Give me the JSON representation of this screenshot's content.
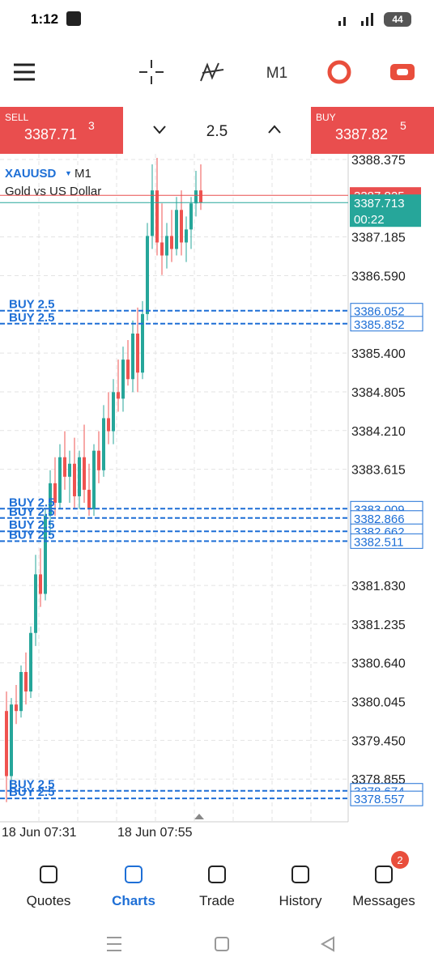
{
  "status": {
    "time": "1:12",
    "battery": "44"
  },
  "toolbar": {
    "timeframe": "M1"
  },
  "trade": {
    "sell_label": "SELL",
    "sell_price": "3387.71",
    "sell_sup": "3",
    "lot": "2.5",
    "buy_label": "BUY",
    "buy_price": "3387.82",
    "buy_sup": "5"
  },
  "chart_data": {
    "type": "candlestick",
    "symbol": "XAUUSD",
    "timeframe": "M1",
    "description": "Gold vs US Dollar",
    "up_color": "#26a69a",
    "down_color": "#ef5350",
    "grid": true,
    "ylim": [
      3378.198,
      3388.462
    ],
    "yticks": [
      3388.375,
      3387.185,
      {
        "value": 3386.59,
        "label": "3386.590"
      },
      {
        "value": 3385.4,
        "label": "3385.400"
      },
      3384.805,
      {
        "value": 3384.21,
        "label": "3384.210"
      },
      3383.615,
      {
        "value": 3381.83,
        "label": "3381.830"
      },
      3381.235,
      {
        "value": 3380.64,
        "label": "3380.640"
      },
      3380.045,
      {
        "value": 3379.45,
        "label": "3379.450"
      },
      3378.855
    ],
    "x_labels": [
      "18 Jun 07:31",
      "18 Jun 07:55"
    ],
    "bid": 3387.713,
    "bid_timer": "00:22",
    "ask": 3387.825,
    "orders": [
      {
        "label": "BUY 2.5",
        "price": 3386.052
      },
      {
        "label": "BUY 2.5",
        "price": 3385.852
      },
      {
        "label": "BUY 2.5",
        "price": 3383.009
      },
      {
        "label": "BUY 2.5",
        "price": 3382.866
      },
      {
        "label": "BUY 2.5",
        "price": 3382.662
      },
      {
        "label": "BUY 2.5",
        "price": 3382.511
      },
      {
        "label": "BUY 2.5",
        "price": 3378.674
      },
      {
        "label": "BUY 2.5",
        "price": 3378.557
      }
    ],
    "candles": [
      [
        3379.9,
        3380.2,
        3378.5,
        3378.9
      ],
      [
        3378.9,
        3380.1,
        3378.7,
        3380.0
      ],
      [
        3380.0,
        3380.3,
        3379.7,
        3379.9
      ],
      [
        3379.9,
        3380.6,
        3379.8,
        3380.5
      ],
      [
        3380.5,
        3380.8,
        3380.0,
        3380.2
      ],
      [
        3380.2,
        3381.2,
        3380.1,
        3381.1
      ],
      [
        3381.1,
        3382.3,
        3380.9,
        3382.0
      ],
      [
        3382.0,
        3382.4,
        3381.5,
        3381.7
      ],
      [
        3381.7,
        3383.0,
        3381.6,
        3382.9
      ],
      [
        3382.9,
        3383.6,
        3382.6,
        3383.4
      ],
      [
        3383.4,
        3383.8,
        3382.9,
        3383.1
      ],
      [
        3383.1,
        3384.0,
        3383.0,
        3383.8
      ],
      [
        3383.8,
        3384.2,
        3383.3,
        3383.5
      ],
      [
        3383.5,
        3383.9,
        3383.1,
        3383.7
      ],
      [
        3383.7,
        3384.1,
        3383.0,
        3383.2
      ],
      [
        3383.2,
        3383.9,
        3383.0,
        3383.8
      ],
      [
        3383.8,
        3384.3,
        3383.1,
        3383.3
      ],
      [
        3383.3,
        3383.7,
        3382.9,
        3383.0
      ],
      [
        3383.0,
        3384.0,
        3382.9,
        3383.9
      ],
      [
        3383.9,
        3384.2,
        3383.4,
        3383.6
      ],
      [
        3383.6,
        3384.6,
        3383.5,
        3384.4
      ],
      [
        3384.4,
        3384.8,
        3384.0,
        3384.2
      ],
      [
        3384.2,
        3385.0,
        3384.0,
        3384.8
      ],
      [
        3384.8,
        3385.3,
        3384.5,
        3384.7
      ],
      [
        3384.7,
        3385.5,
        3384.5,
        3385.3
      ],
      [
        3385.3,
        3385.6,
        3384.9,
        3385.0
      ],
      [
        3385.0,
        3385.9,
        3384.8,
        3385.7
      ],
      [
        3385.7,
        3386.1,
        3384.8,
        3385.1
      ],
      [
        3385.1,
        3386.2,
        3385.0,
        3386.0
      ],
      [
        3386.0,
        3387.4,
        3385.9,
        3387.2
      ],
      [
        3387.2,
        3388.3,
        3387.0,
        3387.9
      ],
      [
        3387.9,
        3388.4,
        3386.9,
        3387.1
      ],
      [
        3387.1,
        3387.7,
        3386.6,
        3386.9
      ],
      [
        3386.9,
        3387.4,
        3386.7,
        3387.2
      ],
      [
        3387.2,
        3387.6,
        3386.8,
        3387.0
      ],
      [
        3387.0,
        3387.8,
        3386.9,
        3387.6
      ],
      [
        3387.6,
        3387.9,
        3386.9,
        3387.1
      ],
      [
        3387.1,
        3387.5,
        3386.8,
        3387.3
      ],
      [
        3387.3,
        3387.8,
        3387.0,
        3387.7
      ],
      [
        3387.7,
        3388.2,
        3387.5,
        3387.9
      ],
      [
        3387.9,
        3388.3,
        3387.6,
        3387.713
      ]
    ]
  },
  "nav": [
    {
      "label": "Quotes"
    },
    {
      "label": "Charts"
    },
    {
      "label": "Trade"
    },
    {
      "label": "History"
    },
    {
      "label": "Messages"
    }
  ],
  "messages_badge": "2"
}
